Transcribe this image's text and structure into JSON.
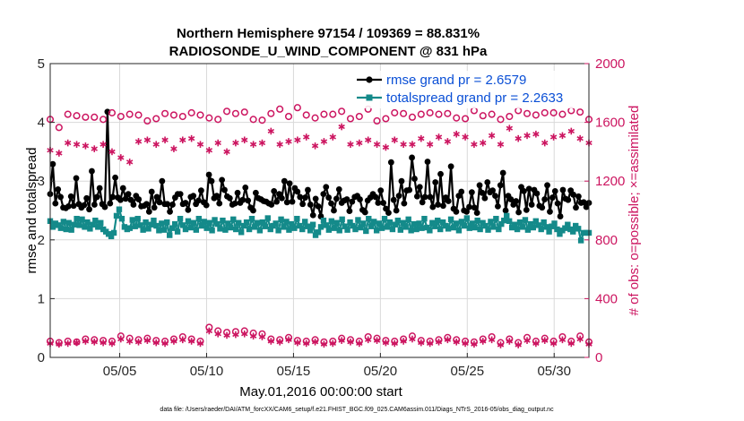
{
  "chart_data": {
    "type": "line",
    "title": [
      "Northern Hemisphere 97154 / 109369 = 88.831%",
      "RADIOSONDE_U_WIND_COMPONENT @ 831 hPa"
    ],
    "xlabel": "May.01,2016 00:00:00 start",
    "ylabel_left": "rmse and totalspread",
    "ylabel_right": "# of obs: o=possible; ×=assimilated",
    "footnote": "data file: /Users/raeder/DAI/ATM_forcXX/CAM6_setup/f.e21.FHIST_BGC.f09_025.CAM6assim.011/Diags_NTrS_2016-05/obs_diag_output.nc",
    "x_range": [
      1,
      32
    ],
    "x_ticks": [
      {
        "v": 5,
        "label": "05/05"
      },
      {
        "v": 10,
        "label": "05/10"
      },
      {
        "v": 15,
        "label": "05/15"
      },
      {
        "v": 20,
        "label": "05/20"
      },
      {
        "v": 25,
        "label": "05/25"
      },
      {
        "v": 30,
        "label": "05/30"
      }
    ],
    "ylim_left": [
      0,
      5
    ],
    "yticks_left": [
      "0",
      "1",
      "2",
      "3",
      "4",
      "5"
    ],
    "ylim_right": [
      0,
      2000
    ],
    "yticks_right": [
      "0",
      "400",
      "800",
      "1200",
      "1600",
      "2000"
    ],
    "grid": true,
    "legend_position": "top-right",
    "series": [
      {
        "name": "rmse grand pr = 2.6579",
        "axis": "left",
        "color": "#000000",
        "marker": "circle-filled",
        "values": [
          2.78,
          3.29,
          2.62,
          2.86,
          2.73,
          2.55,
          2.54,
          2.57,
          2.74,
          2.58,
          3.05,
          2.61,
          2.55,
          2.59,
          2.71,
          2.52,
          3.17,
          2.6,
          2.73,
          2.88,
          2.61,
          2.56,
          4.18,
          2.62,
          2.73,
          3.06,
          2.72,
          2.68,
          2.88,
          2.7,
          2.78,
          2.68,
          2.6,
          2.75,
          2.69,
          2.57,
          2.58,
          2.61,
          2.48,
          2.82,
          2.55,
          2.73,
          2.64,
          3.0,
          2.61,
          2.61,
          2.48,
          2.6,
          2.72,
          2.78,
          2.78,
          2.61,
          2.63,
          2.51,
          2.73,
          2.75,
          2.61,
          2.67,
          2.84,
          2.64,
          2.59,
          3.11,
          3.0,
          2.71,
          2.75,
          2.62,
          3.02,
          2.85,
          2.74,
          2.71,
          2.6,
          2.62,
          2.8,
          2.63,
          2.68,
          2.89,
          2.67,
          2.55,
          2.5,
          2.8,
          2.71,
          2.69,
          2.66,
          2.65,
          2.62,
          2.6,
          2.83,
          2.65,
          2.78,
          2.71,
          3.0,
          2.64,
          2.96,
          2.65,
          2.88,
          2.82,
          2.73,
          2.61,
          2.72,
          2.85,
          2.6,
          2.42,
          2.7,
          2.57,
          2.4,
          2.78,
          2.9,
          2.72,
          2.62,
          2.5,
          2.7,
          2.86,
          2.63,
          2.67,
          2.69,
          2.49,
          2.65,
          2.73,
          2.75,
          2.69,
          2.51,
          2.47,
          2.67,
          2.72,
          2.78,
          2.73,
          2.63,
          2.84,
          2.63,
          2.53,
          2.46,
          3.32,
          2.68,
          2.5,
          2.75,
          3.0,
          2.62,
          2.84,
          2.85,
          3.4,
          3.04,
          2.74,
          2.9,
          2.64,
          2.73,
          3.33,
          2.73,
          2.56,
          2.98,
          2.6,
          3.12,
          2.58,
          2.72,
          2.66,
          3.25,
          2.53,
          2.48,
          2.75,
          2.82,
          2.5,
          2.48,
          2.56,
          2.81,
          2.55,
          2.46,
          2.93,
          2.8,
          2.71,
          2.98,
          2.81,
          2.84,
          2.75,
          2.57,
          2.93,
          3.14,
          2.5,
          2.75,
          2.69,
          2.6,
          2.66,
          2.47,
          2.9,
          2.83,
          2.51,
          2.87,
          2.6,
          2.85,
          2.79,
          2.58,
          2.55,
          2.69,
          2.93,
          2.48,
          2.72,
          2.83,
          2.62,
          2.4,
          2.85,
          2.7,
          2.68,
          2.84,
          2.77,
          2.55,
          2.74,
          2.63,
          2.64,
          2.56,
          2.63
        ]
      },
      {
        "name": "totalspread grand pr = 2.2633",
        "axis": "left",
        "color": "#148a8a",
        "marker": "square-filled",
        "values": [
          2.32,
          2.22,
          2.28,
          2.25,
          2.2,
          2.31,
          2.18,
          2.29,
          2.17,
          2.26,
          2.36,
          2.25,
          2.35,
          2.22,
          2.3,
          2.19,
          2.26,
          2.33,
          2.22,
          2.29,
          2.18,
          2.14,
          2.1,
          2.06,
          2.12,
          2.41,
          2.52,
          2.36,
          2.22,
          2.18,
          2.2,
          2.34,
          2.23,
          2.36,
          2.25,
          2.17,
          2.3,
          2.19,
          2.26,
          2.33,
          2.24,
          2.16,
          2.28,
          2.17,
          2.3,
          2.08,
          2.2,
          2.27,
          2.14,
          2.36,
          2.25,
          2.18,
          2.32,
          2.21,
          2.29,
          2.17,
          2.36,
          2.24,
          2.31,
          2.2,
          2.29,
          2.16,
          2.34,
          2.27,
          2.19,
          2.33,
          2.17,
          2.28,
          2.21,
          2.35,
          2.18,
          2.29,
          2.13,
          2.24,
          2.3,
          2.18,
          2.36,
          2.22,
          2.29,
          2.16,
          2.3,
          2.23,
          2.37,
          2.18,
          2.24,
          2.28,
          2.16,
          2.35,
          2.22,
          2.31,
          2.17,
          2.27,
          2.2,
          2.36,
          2.24,
          2.18,
          2.31,
          2.23,
          2.16,
          2.26,
          2.08,
          2.13,
          2.22,
          2.33,
          2.25,
          2.17,
          2.32,
          2.2,
          2.29,
          2.16,
          2.35,
          2.23,
          2.17,
          2.3,
          2.24,
          2.18,
          2.34,
          2.21,
          2.28,
          2.15,
          2.36,
          2.23,
          2.31,
          2.16,
          2.28,
          2.2,
          2.36,
          2.22,
          2.3,
          2.18,
          2.26,
          2.33,
          2.17,
          2.29,
          2.22,
          2.35,
          2.16,
          2.27,
          2.18,
          2.28,
          2.2,
          2.36,
          2.21,
          2.16,
          2.29,
          2.23,
          2.33,
          2.18,
          2.3,
          2.24,
          2.19,
          2.35,
          2.21,
          2.28,
          2.16,
          2.31,
          2.24,
          2.37,
          2.2,
          2.28,
          2.21,
          2.33,
          2.18,
          2.29,
          2.24,
          2.17,
          2.31,
          2.22,
          2.36,
          2.18,
          2.27,
          2.33,
          2.41,
          2.32,
          2.21,
          2.26,
          2.18,
          2.3,
          2.22,
          2.34,
          2.17,
          2.27,
          2.21,
          2.32,
          2.25,
          2.18,
          2.3,
          2.22,
          2.14,
          2.23,
          2.28,
          2.18,
          2.1,
          2.16,
          2.2,
          2.26,
          2.18,
          2.14,
          2.24,
          2.19,
          1.99,
          2.12,
          2.12,
          2.12
        ]
      },
      {
        "name": "possible (upper)",
        "axis": "right",
        "color": "#cc1560",
        "marker": "circle-open",
        "values": [
          1620,
          1565,
          1655,
          1645,
          1635,
          1635,
          1620,
          1665,
          1640,
          1655,
          1650,
          1610,
          1625,
          1660,
          1650,
          1640,
          1665,
          1650,
          1630,
          1620,
          1675,
          1660,
          1670,
          1620,
          1615,
          1660,
          1690,
          1640,
          1700,
          1650,
          1630,
          1655,
          1655,
          1675,
          1625,
          1640,
          1690,
          1610,
          1625,
          1665,
          1660,
          1635,
          1655,
          1665,
          1655,
          1660,
          1630,
          1625,
          1680,
          1645,
          1655,
          1620,
          1640,
          1680,
          1660,
          1650,
          1665,
          1665,
          1655,
          1680,
          1670,
          1620
        ]
      },
      {
        "name": "assimilated (upper)",
        "axis": "right",
        "color": "#cc1560",
        "marker": "asterisk",
        "values": [
          1410,
          1390,
          1460,
          1450,
          1440,
          1420,
          1450,
          1400,
          1360,
          1330,
          1470,
          1480,
          1450,
          1480,
          1420,
          1480,
          1490,
          1450,
          1410,
          1460,
          1400,
          1460,
          1480,
          1450,
          1460,
          1540,
          1450,
          1470,
          1480,
          1500,
          1440,
          1470,
          1500,
          1570,
          1450,
          1460,
          1480,
          1450,
          1430,
          1480,
          1450,
          1450,
          1490,
          1450,
          1500,
          1470,
          1520,
          1500,
          1450,
          1460,
          1510,
          1450,
          1560,
          1490,
          1510,
          1520,
          1460,
          1500,
          1510,
          1540,
          1490,
          1460
        ]
      },
      {
        "name": "possible (lower)",
        "axis": "right",
        "color": "#cc1560",
        "marker": "circle-open",
        "values": [
          110,
          100,
          110,
          105,
          125,
          120,
          115,
          110,
          145,
          130,
          120,
          130,
          115,
          110,
          125,
          140,
          125,
          110,
          205,
          180,
          170,
          175,
          180,
          165,
          160,
          125,
          120,
          135,
          115,
          110,
          120,
          105,
          110,
          130,
          120,
          110,
          140,
          130,
          115,
          110,
          125,
          145,
          115,
          110,
          120,
          135,
          120,
          110,
          105,
          125,
          140,
          100,
          125,
          100,
          135,
          110,
          130,
          110,
          140,
          110,
          145,
          105
        ]
      },
      {
        "name": "assimilated (lower)",
        "axis": "right",
        "color": "#cc1560",
        "marker": "asterisk",
        "values": [
          95,
          90,
          95,
          100,
          110,
          105,
          100,
          95,
          125,
          110,
          105,
          115,
          100,
          95,
          110,
          120,
          110,
          95,
          180,
          160,
          150,
          155,
          160,
          145,
          140,
          110,
          105,
          120,
          100,
          95,
          105,
          90,
          95,
          115,
          105,
          95,
          120,
          115,
          100,
          95,
          110,
          125,
          100,
          95,
          105,
          120,
          105,
          95,
          90,
          110,
          120,
          85,
          110,
          85,
          115,
          95,
          115,
          95,
          120,
          95,
          125,
          90
        ]
      }
    ]
  }
}
